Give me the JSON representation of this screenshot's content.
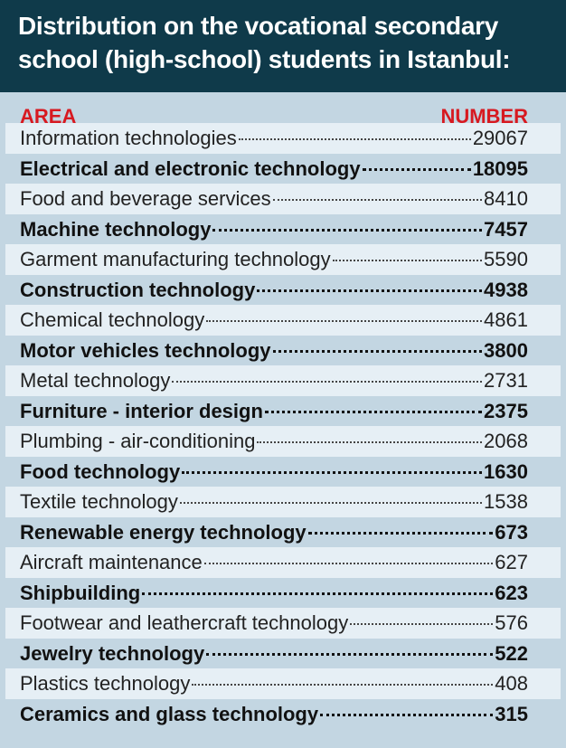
{
  "header": {
    "title": [
      "Distribution on the vocational secondary",
      "school (high-school) students in Istanbul:"
    ]
  },
  "table": {
    "columns": [
      "AREA",
      "NUMBER"
    ],
    "rows": [
      [
        "Information technologies",
        29067
      ],
      [
        "Electrical and electronic technology",
        18095
      ],
      [
        "Food and beverage services",
        8410
      ],
      [
        "Machine technology",
        7457
      ],
      [
        "Garment manufacturing technology",
        5590
      ],
      [
        "Construction technology",
        4938
      ],
      [
        "Chemical technology",
        4861
      ],
      [
        "Motor vehicles technology",
        3800
      ],
      [
        "Metal technology",
        2731
      ],
      [
        "Furniture - interior design",
        2375
      ],
      [
        "Plumbing - air-conditioning",
        2068
      ],
      [
        "Food technology",
        1630
      ],
      [
        "Textile technology",
        1538
      ],
      [
        "Renewable energy technology",
        673
      ],
      [
        "Aircraft maintenance",
        627
      ],
      [
        "Shipbuilding",
        623
      ],
      [
        "Footwear and leathercraft technology",
        576
      ],
      [
        "Jewelry technology",
        522
      ],
      [
        "Plastics technology",
        408
      ],
      [
        "Ceramics and glass technology",
        315
      ]
    ]
  }
}
